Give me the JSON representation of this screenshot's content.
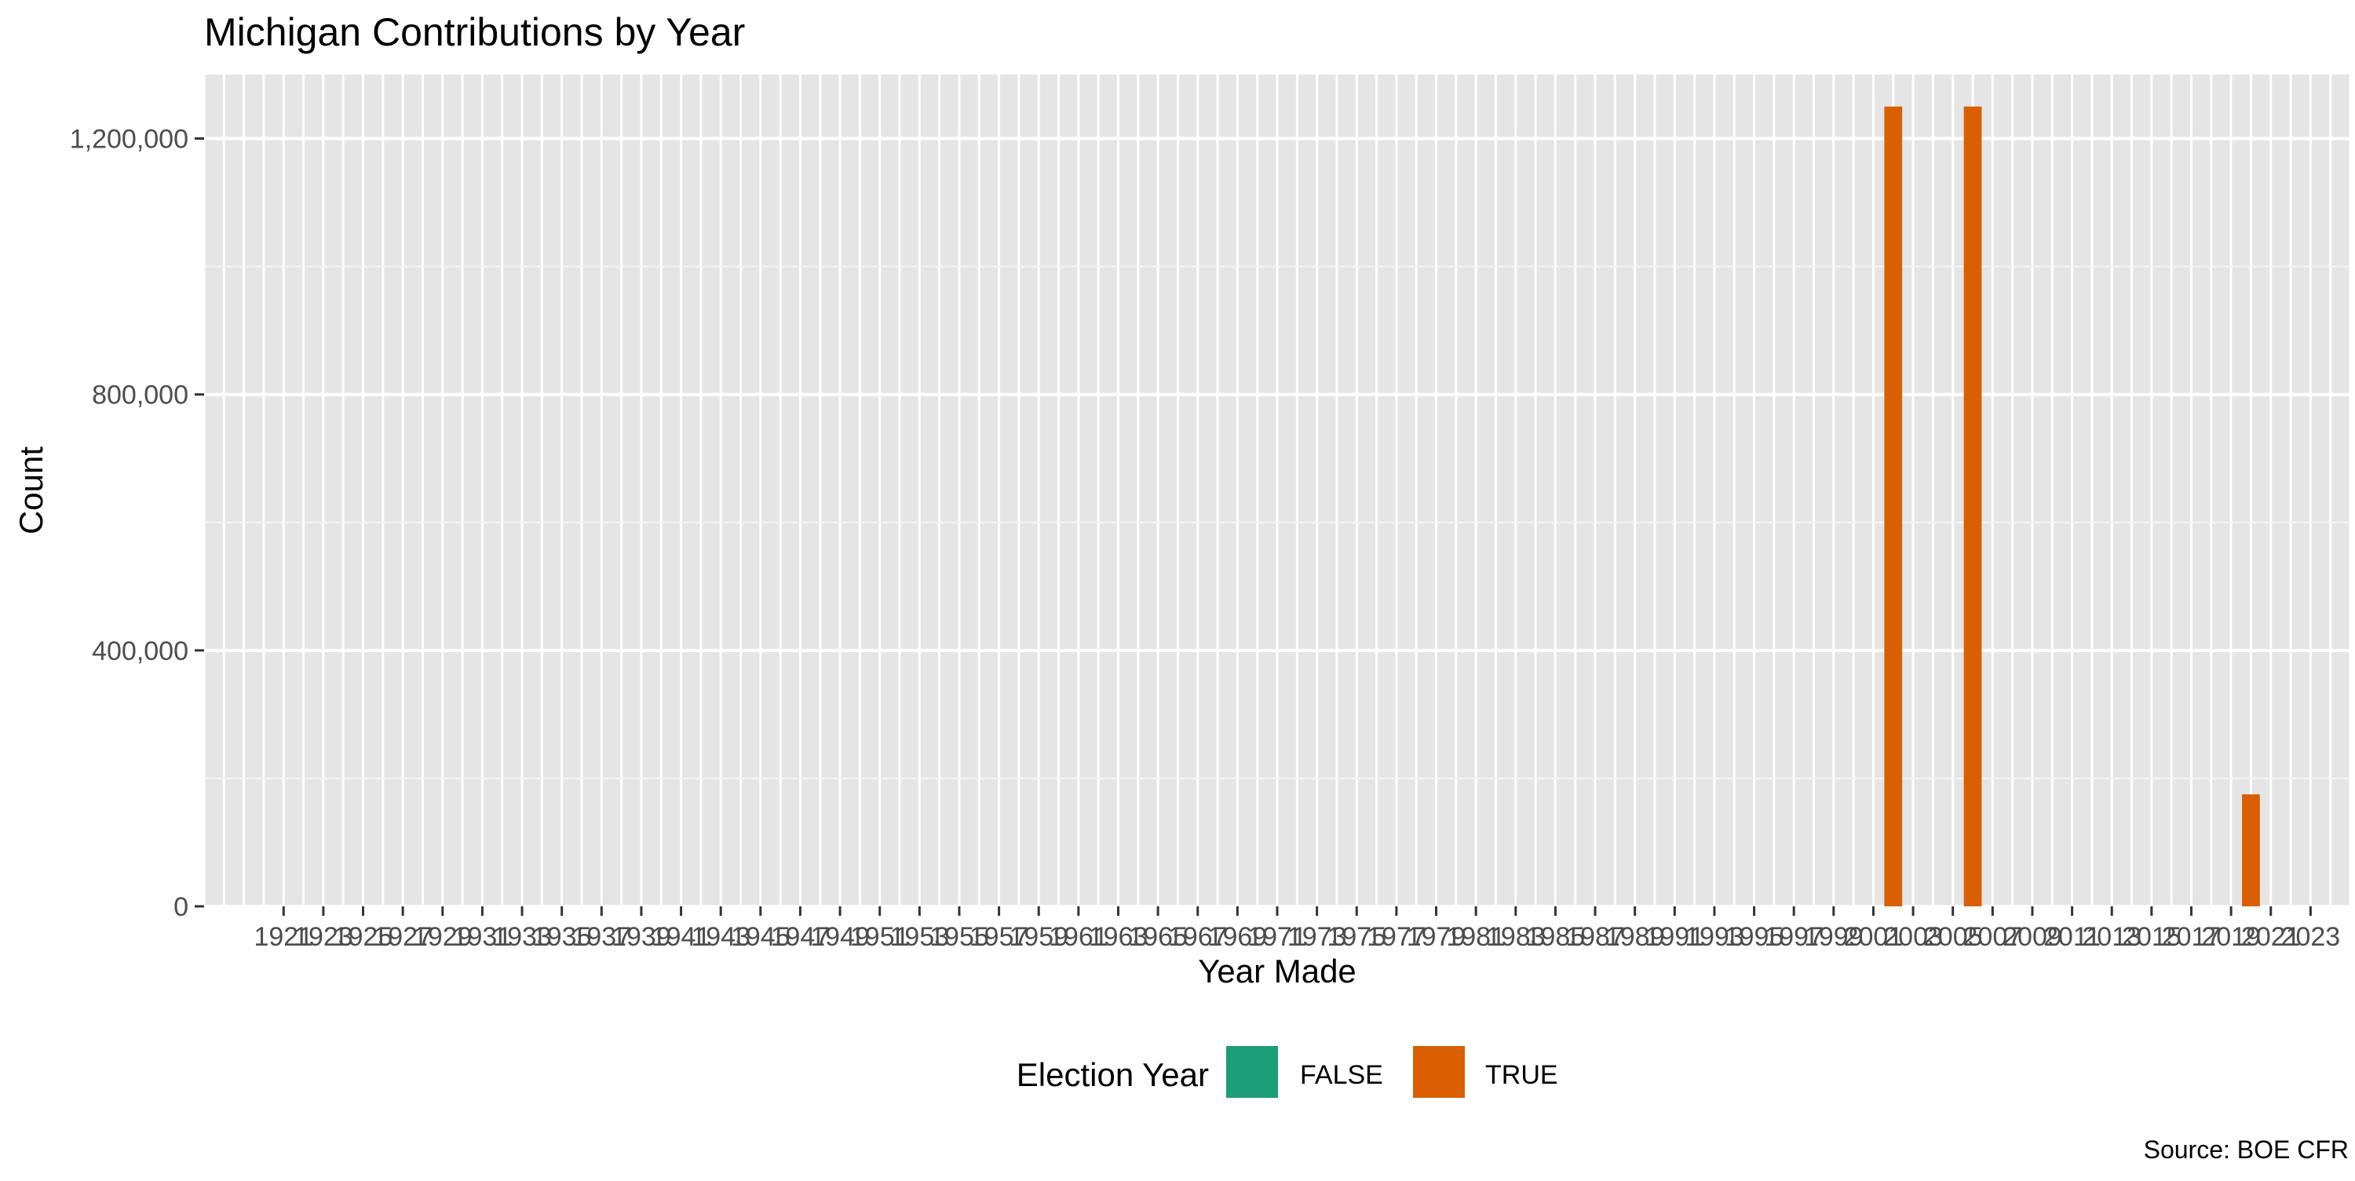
{
  "chart_data": {
    "type": "bar",
    "title": "Michigan Contributions by Year",
    "xlabel": "Year Made",
    "ylabel": "Count",
    "caption": "Source: BOE CFR",
    "x_range": [
      1917,
      2025
    ],
    "ylim": [
      0,
      1300000
    ],
    "y_ticks": [
      0,
      400000,
      800000,
      1200000
    ],
    "y_tick_labels": [
      "0",
      "400,000",
      "800,000",
      "1,200,000"
    ],
    "x_ticks": [
      1921,
      1923,
      1925,
      1927,
      1929,
      1931,
      1933,
      1935,
      1937,
      1939,
      1941,
      1943,
      1945,
      1947,
      1949,
      1951,
      1953,
      1955,
      1957,
      1959,
      1961,
      1963,
      1965,
      1967,
      1969,
      1971,
      1973,
      1975,
      1977,
      1979,
      1981,
      1983,
      1985,
      1987,
      1989,
      1991,
      1993,
      1995,
      1997,
      1999,
      2001,
      2003,
      2005,
      2007,
      2009,
      2011,
      2013,
      2015,
      2017,
      2019,
      2021,
      2023
    ],
    "x_tick_labels": [
      "1921",
      "1923",
      "1925",
      "1927",
      "1929",
      "1931",
      "1933",
      "1935",
      "1937",
      "1939",
      "1941",
      "1943",
      "1945",
      "1947",
      "1949",
      "1951",
      "1953",
      "1955",
      "1957",
      "1959",
      "1961",
      "1963",
      "1965",
      "1967",
      "1969",
      "1971",
      "1973",
      "1975",
      "1977",
      "1979",
      "1981",
      "1983",
      "1985",
      "1987",
      "1989",
      "1991",
      "1993",
      "1995",
      "1997",
      "1999",
      "2001",
      "2003",
      "2005",
      "2007",
      "2009",
      "2011",
      "2013",
      "2015",
      "2017",
      "2019",
      "2021",
      "2023"
    ],
    "grid": true,
    "legend": {
      "title": "Election Year",
      "position": "bottom",
      "entries": [
        {
          "label": "FALSE",
          "color": "#1b9e77"
        },
        {
          "label": "TRUE",
          "color": "#d95f02"
        }
      ]
    },
    "bars": [
      {
        "year": 2002,
        "value": 1250000,
        "election_year": "TRUE"
      },
      {
        "year": 2006,
        "value": 1250000,
        "election_year": "TRUE"
      },
      {
        "year": 2020,
        "value": 175000,
        "election_year": "TRUE"
      }
    ]
  }
}
